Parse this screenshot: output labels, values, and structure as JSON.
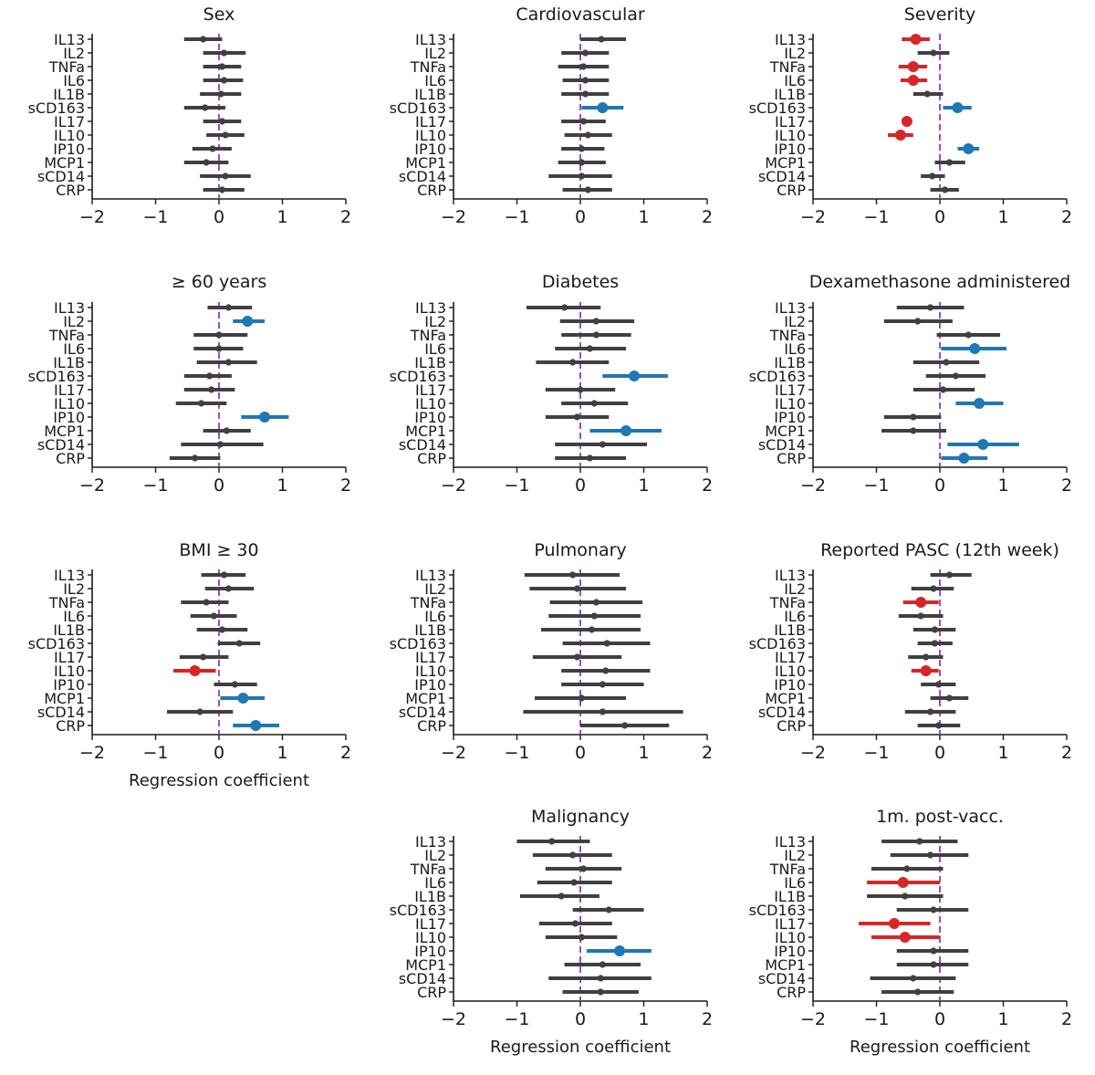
{
  "colors": {
    "neutral": "#404040",
    "negative": "#d62728",
    "positive": "#1f77b4",
    "zero_line": "#8a3fb5",
    "axis": "#1a1a1a"
  },
  "chart_data": {
    "type": "forest",
    "xlim": [
      -2,
      2
    ],
    "xticks": [
      "−2",
      "−1",
      "0",
      "1",
      "2"
    ],
    "categories": [
      "IL13",
      "IL2",
      "TNFa",
      "IL6",
      "IL1B",
      "sCD163",
      "IL17",
      "IL10",
      "IP10",
      "MCP1",
      "sCD14",
      "CRP"
    ],
    "xlabel": "Regression coefficient",
    "panels": [
      {
        "title": "Sex",
        "xlabel": "",
        "points": [
          {
            "est": -0.25,
            "lo": -0.55,
            "hi": 0.05,
            "sig": ""
          },
          {
            "est": 0.08,
            "lo": -0.25,
            "hi": 0.42,
            "sig": ""
          },
          {
            "est": 0.05,
            "lo": -0.25,
            "hi": 0.35,
            "sig": ""
          },
          {
            "est": 0.08,
            "lo": -0.25,
            "hi": 0.38,
            "sig": ""
          },
          {
            "est": 0.03,
            "lo": -0.3,
            "hi": 0.35,
            "sig": ""
          },
          {
            "est": -0.22,
            "lo": -0.55,
            "hi": 0.1,
            "sig": ""
          },
          {
            "est": 0.05,
            "lo": -0.25,
            "hi": 0.35,
            "sig": ""
          },
          {
            "est": 0.1,
            "lo": -0.2,
            "hi": 0.4,
            "sig": ""
          },
          {
            "est": -0.1,
            "lo": -0.42,
            "hi": 0.2,
            "sig": ""
          },
          {
            "est": -0.2,
            "lo": -0.55,
            "hi": 0.15,
            "sig": ""
          },
          {
            "est": 0.1,
            "lo": -0.3,
            "hi": 0.5,
            "sig": ""
          },
          {
            "est": 0.05,
            "lo": -0.25,
            "hi": 0.4,
            "sig": ""
          }
        ]
      },
      {
        "title": "Cardiovascular",
        "xlabel": "",
        "points": [
          {
            "est": 0.33,
            "lo": 0.0,
            "hi": 0.72,
            "sig": ""
          },
          {
            "est": 0.08,
            "lo": -0.3,
            "hi": 0.45,
            "sig": ""
          },
          {
            "est": 0.05,
            "lo": -0.35,
            "hi": 0.45,
            "sig": ""
          },
          {
            "est": 0.08,
            "lo": -0.28,
            "hi": 0.45,
            "sig": ""
          },
          {
            "est": 0.08,
            "lo": -0.3,
            "hi": 0.45,
            "sig": ""
          },
          {
            "est": 0.35,
            "lo": 0.02,
            "hi": 0.68,
            "sig": "pos"
          },
          {
            "est": 0.05,
            "lo": -0.3,
            "hi": 0.4,
            "sig": ""
          },
          {
            "est": 0.12,
            "lo": -0.25,
            "hi": 0.5,
            "sig": ""
          },
          {
            "est": 0.02,
            "lo": -0.3,
            "hi": 0.38,
            "sig": ""
          },
          {
            "est": 0.02,
            "lo": -0.35,
            "hi": 0.4,
            "sig": ""
          },
          {
            "est": 0.02,
            "lo": -0.5,
            "hi": 0.5,
            "sig": ""
          },
          {
            "est": 0.12,
            "lo": -0.28,
            "hi": 0.5,
            "sig": ""
          }
        ]
      },
      {
        "title": "Severity",
        "xlabel": "",
        "points": [
          {
            "est": -0.38,
            "lo": -0.6,
            "hi": -0.16,
            "sig": "neg"
          },
          {
            "est": -0.1,
            "lo": -0.35,
            "hi": 0.15,
            "sig": ""
          },
          {
            "est": -0.42,
            "lo": -0.65,
            "hi": -0.2,
            "sig": "neg"
          },
          {
            "est": -0.42,
            "lo": -0.62,
            "hi": -0.2,
            "sig": "neg"
          },
          {
            "est": -0.2,
            "lo": -0.42,
            "hi": 0.05,
            "sig": ""
          },
          {
            "est": 0.28,
            "lo": 0.05,
            "hi": 0.5,
            "sig": "pos"
          },
          {
            "est": -0.52,
            "lo": -0.6,
            "hi": -0.44,
            "sig": "neg"
          },
          {
            "est": -0.62,
            "lo": -0.82,
            "hi": -0.42,
            "sig": "neg"
          },
          {
            "est": 0.45,
            "lo": 0.28,
            "hi": 0.62,
            "sig": "pos"
          },
          {
            "est": 0.15,
            "lo": -0.08,
            "hi": 0.4,
            "sig": ""
          },
          {
            "est": -0.12,
            "lo": -0.3,
            "hi": 0.08,
            "sig": ""
          },
          {
            "est": 0.08,
            "lo": -0.15,
            "hi": 0.3,
            "sig": ""
          }
        ]
      },
      {
        "title": "≥ 60 years",
        "xlabel": "",
        "points": [
          {
            "est": 0.15,
            "lo": -0.18,
            "hi": 0.52,
            "sig": ""
          },
          {
            "est": 0.45,
            "lo": 0.22,
            "hi": 0.72,
            "sig": "pos"
          },
          {
            "est": 0.0,
            "lo": -0.4,
            "hi": 0.45,
            "sig": ""
          },
          {
            "est": 0.0,
            "lo": -0.4,
            "hi": 0.38,
            "sig": ""
          },
          {
            "est": 0.15,
            "lo": -0.35,
            "hi": 0.6,
            "sig": ""
          },
          {
            "est": -0.15,
            "lo": -0.55,
            "hi": 0.2,
            "sig": ""
          },
          {
            "est": -0.12,
            "lo": -0.55,
            "hi": 0.25,
            "sig": ""
          },
          {
            "est": -0.28,
            "lo": -0.68,
            "hi": 0.12,
            "sig": ""
          },
          {
            "est": 0.72,
            "lo": 0.35,
            "hi": 1.1,
            "sig": "pos"
          },
          {
            "est": 0.12,
            "lo": -0.25,
            "hi": 0.5,
            "sig": ""
          },
          {
            "est": 0.02,
            "lo": -0.6,
            "hi": 0.7,
            "sig": ""
          },
          {
            "est": -0.38,
            "lo": -0.78,
            "hi": 0.02,
            "sig": ""
          }
        ]
      },
      {
        "title": "Diabetes",
        "xlabel": "",
        "points": [
          {
            "est": -0.25,
            "lo": -0.85,
            "hi": 0.32,
            "sig": ""
          },
          {
            "est": 0.25,
            "lo": -0.32,
            "hi": 0.85,
            "sig": ""
          },
          {
            "est": 0.25,
            "lo": -0.3,
            "hi": 0.8,
            "sig": ""
          },
          {
            "est": 0.15,
            "lo": -0.4,
            "hi": 0.72,
            "sig": ""
          },
          {
            "est": -0.12,
            "lo": -0.7,
            "hi": 0.45,
            "sig": ""
          },
          {
            "est": 0.85,
            "lo": 0.35,
            "hi": 1.38,
            "sig": "pos"
          },
          {
            "est": 0.0,
            "lo": -0.55,
            "hi": 0.55,
            "sig": ""
          },
          {
            "est": 0.22,
            "lo": -0.3,
            "hi": 0.75,
            "sig": ""
          },
          {
            "est": -0.05,
            "lo": -0.55,
            "hi": 0.45,
            "sig": ""
          },
          {
            "est": 0.72,
            "lo": 0.15,
            "hi": 1.28,
            "sig": "pos"
          },
          {
            "est": 0.35,
            "lo": -0.4,
            "hi": 1.05,
            "sig": ""
          },
          {
            "est": 0.15,
            "lo": -0.4,
            "hi": 0.72,
            "sig": ""
          }
        ]
      },
      {
        "title": "Dexamethasone administered",
        "xlabel": "",
        "points": [
          {
            "est": -0.15,
            "lo": -0.68,
            "hi": 0.38,
            "sig": ""
          },
          {
            "est": -0.35,
            "lo": -0.88,
            "hi": 0.2,
            "sig": ""
          },
          {
            "est": 0.45,
            "lo": -0.05,
            "hi": 0.95,
            "sig": ""
          },
          {
            "est": 0.55,
            "lo": 0.02,
            "hi": 1.05,
            "sig": "pos"
          },
          {
            "est": 0.1,
            "lo": -0.42,
            "hi": 0.62,
            "sig": ""
          },
          {
            "est": 0.25,
            "lo": -0.22,
            "hi": 0.72,
            "sig": ""
          },
          {
            "est": 0.05,
            "lo": -0.42,
            "hi": 0.55,
            "sig": ""
          },
          {
            "est": 0.62,
            "lo": 0.25,
            "hi": 1.0,
            "sig": "pos"
          },
          {
            "est": -0.42,
            "lo": -0.88,
            "hi": 0.02,
            "sig": ""
          },
          {
            "est": -0.42,
            "lo": -0.92,
            "hi": 0.1,
            "sig": ""
          },
          {
            "est": 0.68,
            "lo": 0.12,
            "hi": 1.25,
            "sig": "pos"
          },
          {
            "est": 0.38,
            "lo": 0.02,
            "hi": 0.75,
            "sig": "pos"
          }
        ]
      },
      {
        "title": "BMI  ≥ 30",
        "xlabel": "Regression coefficient",
        "points": [
          {
            "est": 0.08,
            "lo": -0.28,
            "hi": 0.42,
            "sig": ""
          },
          {
            "est": 0.15,
            "lo": -0.22,
            "hi": 0.55,
            "sig": ""
          },
          {
            "est": -0.2,
            "lo": -0.6,
            "hi": 0.15,
            "sig": ""
          },
          {
            "est": -0.08,
            "lo": -0.45,
            "hi": 0.28,
            "sig": ""
          },
          {
            "est": 0.05,
            "lo": -0.35,
            "hi": 0.45,
            "sig": ""
          },
          {
            "est": 0.32,
            "lo": -0.02,
            "hi": 0.65,
            "sig": ""
          },
          {
            "est": -0.25,
            "lo": -0.62,
            "hi": 0.15,
            "sig": ""
          },
          {
            "est": -0.38,
            "lo": -0.72,
            "hi": -0.05,
            "sig": "neg"
          },
          {
            "est": 0.25,
            "lo": -0.08,
            "hi": 0.6,
            "sig": ""
          },
          {
            "est": 0.38,
            "lo": 0.02,
            "hi": 0.72,
            "sig": "pos"
          },
          {
            "est": -0.3,
            "lo": -0.82,
            "hi": 0.22,
            "sig": ""
          },
          {
            "est": 0.58,
            "lo": 0.22,
            "hi": 0.95,
            "sig": "pos"
          }
        ]
      },
      {
        "title": "Pulmonary",
        "xlabel": "",
        "points": [
          {
            "est": -0.12,
            "lo": -0.88,
            "hi": 0.62,
            "sig": ""
          },
          {
            "est": -0.05,
            "lo": -0.8,
            "hi": 0.72,
            "sig": ""
          },
          {
            "est": 0.25,
            "lo": -0.48,
            "hi": 0.98,
            "sig": ""
          },
          {
            "est": 0.22,
            "lo": -0.5,
            "hi": 0.95,
            "sig": ""
          },
          {
            "est": 0.18,
            "lo": -0.62,
            "hi": 0.95,
            "sig": ""
          },
          {
            "est": 0.42,
            "lo": -0.28,
            "hi": 1.1,
            "sig": ""
          },
          {
            "est": -0.05,
            "lo": -0.75,
            "hi": 0.65,
            "sig": ""
          },
          {
            "est": 0.4,
            "lo": -0.3,
            "hi": 1.1,
            "sig": ""
          },
          {
            "est": 0.35,
            "lo": -0.3,
            "hi": 1.0,
            "sig": ""
          },
          {
            "est": 0.02,
            "lo": -0.72,
            "hi": 0.72,
            "sig": ""
          },
          {
            "est": 0.35,
            "lo": -0.9,
            "hi": 1.62,
            "sig": ""
          },
          {
            "est": 0.7,
            "lo": 0.0,
            "hi": 1.4,
            "sig": ""
          }
        ]
      },
      {
        "title": "Reported PASC (12th week)",
        "xlabel": "",
        "points": [
          {
            "est": 0.15,
            "lo": -0.15,
            "hi": 0.5,
            "sig": ""
          },
          {
            "est": -0.1,
            "lo": -0.45,
            "hi": 0.22,
            "sig": ""
          },
          {
            "est": -0.3,
            "lo": -0.58,
            "hi": -0.02,
            "sig": "neg"
          },
          {
            "est": -0.3,
            "lo": -0.65,
            "hi": 0.05,
            "sig": ""
          },
          {
            "est": -0.08,
            "lo": -0.42,
            "hi": 0.25,
            "sig": ""
          },
          {
            "est": -0.08,
            "lo": -0.35,
            "hi": 0.2,
            "sig": ""
          },
          {
            "est": -0.22,
            "lo": -0.5,
            "hi": 0.05,
            "sig": ""
          },
          {
            "est": -0.22,
            "lo": -0.45,
            "hi": -0.02,
            "sig": "neg"
          },
          {
            "est": -0.02,
            "lo": -0.3,
            "hi": 0.25,
            "sig": ""
          },
          {
            "est": 0.15,
            "lo": -0.15,
            "hi": 0.45,
            "sig": ""
          },
          {
            "est": -0.15,
            "lo": -0.55,
            "hi": 0.25,
            "sig": ""
          },
          {
            "est": -0.02,
            "lo": -0.35,
            "hi": 0.32,
            "sig": ""
          }
        ]
      },
      {
        "title": "Malignancy",
        "xlabel": "Regression coefficient",
        "points": [
          {
            "est": -0.45,
            "lo": -1.0,
            "hi": 0.15,
            "sig": ""
          },
          {
            "est": -0.12,
            "lo": -0.75,
            "hi": 0.5,
            "sig": ""
          },
          {
            "est": 0.05,
            "lo": -0.55,
            "hi": 0.65,
            "sig": ""
          },
          {
            "est": -0.1,
            "lo": -0.68,
            "hi": 0.5,
            "sig": ""
          },
          {
            "est": -0.3,
            "lo": -0.95,
            "hi": 0.3,
            "sig": ""
          },
          {
            "est": 0.45,
            "lo": -0.12,
            "hi": 1.0,
            "sig": ""
          },
          {
            "est": -0.08,
            "lo": -0.65,
            "hi": 0.5,
            "sig": ""
          },
          {
            "est": 0.02,
            "lo": -0.55,
            "hi": 0.58,
            "sig": ""
          },
          {
            "est": 0.62,
            "lo": 0.1,
            "hi": 1.12,
            "sig": "pos"
          },
          {
            "est": 0.35,
            "lo": -0.25,
            "hi": 0.95,
            "sig": ""
          },
          {
            "est": 0.32,
            "lo": -0.5,
            "hi": 1.12,
            "sig": ""
          },
          {
            "est": 0.32,
            "lo": -0.28,
            "hi": 0.92,
            "sig": ""
          }
        ]
      },
      {
        "title": "1m. post-vacc.",
        "xlabel": "Regression coefficient",
        "points": [
          {
            "est": -0.32,
            "lo": -0.92,
            "hi": 0.28,
            "sig": ""
          },
          {
            "est": -0.15,
            "lo": -0.78,
            "hi": 0.45,
            "sig": ""
          },
          {
            "est": -0.52,
            "lo": -1.08,
            "hi": 0.05,
            "sig": ""
          },
          {
            "est": -0.58,
            "lo": -1.15,
            "hi": 0.0,
            "sig": "neg"
          },
          {
            "est": -0.55,
            "lo": -1.15,
            "hi": 0.05,
            "sig": ""
          },
          {
            "est": -0.1,
            "lo": -0.68,
            "hi": 0.45,
            "sig": ""
          },
          {
            "est": -0.72,
            "lo": -1.28,
            "hi": -0.15,
            "sig": "neg"
          },
          {
            "est": -0.55,
            "lo": -1.08,
            "hi": 0.0,
            "sig": "neg"
          },
          {
            "est": -0.1,
            "lo": -0.68,
            "hi": 0.45,
            "sig": ""
          },
          {
            "est": -0.1,
            "lo": -0.68,
            "hi": 0.45,
            "sig": ""
          },
          {
            "est": -0.42,
            "lo": -1.1,
            "hi": 0.25,
            "sig": ""
          },
          {
            "est": -0.35,
            "lo": -0.92,
            "hi": 0.22,
            "sig": ""
          }
        ]
      }
    ]
  }
}
